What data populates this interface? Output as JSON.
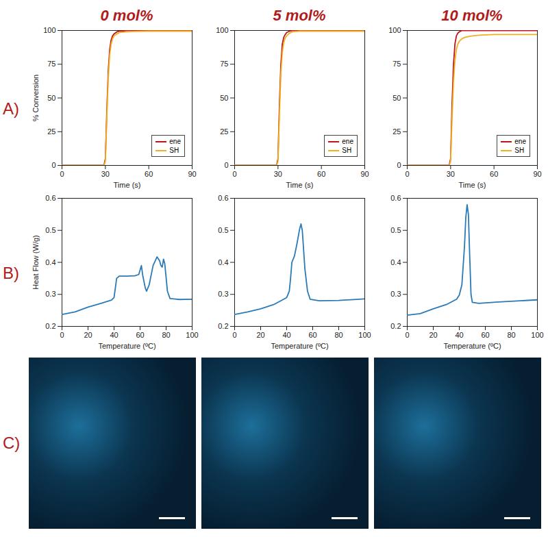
{
  "panel_labels": [
    "A)",
    "B)",
    "C)"
  ],
  "columns": [
    "0 mol%",
    "5 mol%",
    "10 mol%"
  ],
  "chart_data": [
    {
      "type": "line",
      "xlabel": "Time (s)",
      "ylabel": "% Conversion",
      "xlim": [
        0,
        90
      ],
      "xticks": [
        0,
        30,
        60,
        90
      ],
      "ylim": [
        0,
        100
      ],
      "yticks": [
        0,
        25,
        50,
        75,
        100
      ],
      "legend": "lower right",
      "x": [
        0,
        29,
        30,
        31,
        32,
        33,
        34,
        35,
        36,
        38,
        40,
        45,
        50,
        60,
        90
      ],
      "series": [
        {
          "name": "ene",
          "color": "#c0141c",
          "values": [
            0,
            0,
            5,
            40,
            70,
            86,
            93,
            96,
            97.5,
            99,
            99.5,
            100,
            100,
            100,
            100
          ]
        },
        {
          "name": "SH",
          "color": "#f0b020",
          "values": [
            0,
            0,
            3,
            35,
            65,
            82,
            90,
            94,
            96,
            97.5,
            98.5,
            99,
            99.3,
            99.5,
            99.5
          ]
        }
      ]
    },
    {
      "type": "line",
      "xlabel": "Time (s)",
      "xlim": [
        0,
        90
      ],
      "xticks": [
        0,
        30,
        60,
        90
      ],
      "ylim": [
        0,
        100
      ],
      "yticks": [
        0,
        25,
        50,
        75,
        100
      ],
      "legend": "lower right",
      "x": [
        0,
        29,
        30,
        31,
        32,
        33,
        34,
        35,
        36,
        38,
        40,
        45,
        50,
        60,
        90
      ],
      "series": [
        {
          "name": "ene",
          "color": "#c0141c",
          "values": [
            0,
            0,
            5,
            45,
            75,
            90,
            95,
            97,
            98.5,
            99.5,
            100,
            100,
            100,
            100,
            100
          ]
        },
        {
          "name": "SH",
          "color": "#f0b020",
          "values": [
            0,
            0,
            3,
            38,
            68,
            84,
            91,
            94.5,
            96,
            98,
            99,
            99.5,
            99.5,
            99.5,
            99.5
          ]
        }
      ]
    },
    {
      "type": "line",
      "xlabel": "Time (s)",
      "xlim": [
        0,
        90
      ],
      "xticks": [
        0,
        30,
        60,
        90
      ],
      "ylim": [
        0,
        100
      ],
      "yticks": [
        0,
        25,
        50,
        75,
        100
      ],
      "legend": "lower right",
      "x": [
        0,
        29,
        30,
        31,
        32,
        33,
        34,
        35,
        36,
        38,
        40,
        45,
        50,
        60,
        90
      ],
      "series": [
        {
          "name": "ene",
          "color": "#c0141c",
          "values": [
            0,
            0,
            5,
            45,
            75,
            90,
            96,
            98,
            99,
            100,
            100,
            100,
            100,
            100,
            100
          ]
        },
        {
          "name": "SH",
          "color": "#f0b020",
          "values": [
            0,
            0,
            3,
            35,
            62,
            78,
            86,
            90,
            92,
            94,
            95,
            96,
            96.5,
            97,
            97
          ]
        }
      ]
    },
    {
      "type": "line",
      "xlabel": "Temperature (ºC)",
      "ylabel": "Heat Flow (W/g)",
      "xlim": [
        0,
        100
      ],
      "xticks": [
        0,
        20,
        40,
        60,
        80,
        100
      ],
      "ylim": [
        0.2,
        0.6
      ],
      "yticks": [
        0.2,
        0.3,
        0.4,
        0.5,
        0.6
      ],
      "color": "#2a7ab8",
      "x": [
        0,
        10,
        20,
        30,
        38,
        40,
        42,
        44,
        50,
        56,
        59,
        61,
        62,
        64,
        65,
        67,
        70,
        73,
        75,
        76,
        77,
        78,
        79,
        81,
        83,
        90,
        100
      ],
      "values": [
        0.237,
        0.245,
        0.26,
        0.272,
        0.282,
        0.29,
        0.35,
        0.357,
        0.357,
        0.358,
        0.362,
        0.39,
        0.36,
        0.32,
        0.31,
        0.33,
        0.39,
        0.417,
        0.405,
        0.39,
        0.385,
        0.41,
        0.395,
        0.31,
        0.287,
        0.284,
        0.285
      ]
    },
    {
      "type": "line",
      "xlabel": "Temperature (ºC)",
      "xlim": [
        0,
        100
      ],
      "xticks": [
        0,
        20,
        40,
        60,
        80,
        100
      ],
      "ylim": [
        0.2,
        0.6
      ],
      "yticks": [
        0.2,
        0.3,
        0.4,
        0.5,
        0.6
      ],
      "color": "#2a7ab8",
      "x": [
        0,
        10,
        20,
        30,
        40,
        42,
        43,
        44,
        46,
        48,
        50,
        51,
        52,
        54,
        56,
        58,
        65,
        80,
        100
      ],
      "values": [
        0.237,
        0.245,
        0.255,
        0.268,
        0.29,
        0.31,
        0.35,
        0.4,
        0.42,
        0.46,
        0.505,
        0.52,
        0.5,
        0.38,
        0.31,
        0.285,
        0.28,
        0.281,
        0.286
      ]
    },
    {
      "type": "line",
      "xlabel": "Temperature (ºC)",
      "xlim": [
        0,
        100
      ],
      "xticks": [
        0,
        20,
        40,
        60,
        80,
        100
      ],
      "ylim": [
        0.2,
        0.6
      ],
      "yticks": [
        0.2,
        0.3,
        0.4,
        0.5,
        0.6
      ],
      "color": "#2a7ab8",
      "x": [
        0,
        10,
        20,
        30,
        38,
        40,
        42,
        44,
        45,
        46,
        47,
        48,
        49,
        50,
        55,
        70,
        100
      ],
      "values": [
        0.235,
        0.24,
        0.255,
        0.268,
        0.285,
        0.298,
        0.33,
        0.45,
        0.54,
        0.58,
        0.55,
        0.42,
        0.3,
        0.275,
        0.272,
        0.276,
        0.283
      ]
    }
  ]
}
